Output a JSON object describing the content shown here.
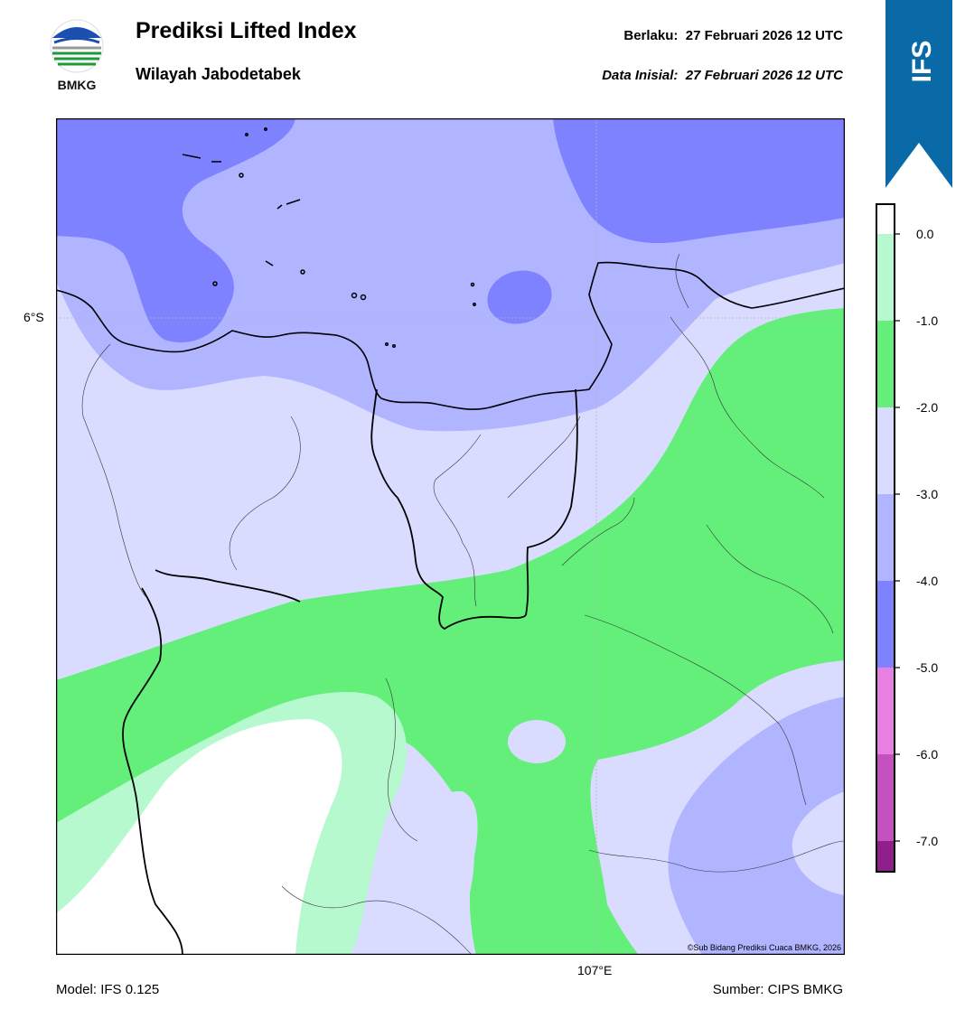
{
  "header": {
    "title": "Prediksi Lifted Index",
    "subtitle": "Wilayah Jabodetabek",
    "valid_label": "Berlaku:",
    "valid_value": "27 Februari 2026 12 UTC",
    "init_label": "Data Inisial:",
    "init_value": "27 Februari 2026 12 UTC",
    "logo_text": "BMKG"
  },
  "badge": {
    "text": "IFS",
    "color": "#0a6aa8"
  },
  "map": {
    "lat_label": "6°S",
    "lon_label": "107°E",
    "credit": "©Sub Bidang Prediksi Cuaca BMKG, 2026"
  },
  "colorbar": {
    "ticks": [
      "0.0",
      "-1.0",
      "-2.0",
      "-3.0",
      "-4.0",
      "-5.0",
      "-6.0",
      "-7.0"
    ],
    "colors": {
      "white": "#ffffff",
      "light_green": "#b6f9cf",
      "green": "#63ef79",
      "pale_blue": "#dadcff",
      "light_blue": "#b1b4ff",
      "blue": "#7f82ff",
      "pink": "#e87fe2",
      "magenta": "#c550bf",
      "purple": "#8e1f8b"
    }
  },
  "footer": {
    "model": "Model: IFS 0.125",
    "source": "Sumber: CIPS BMKG"
  }
}
